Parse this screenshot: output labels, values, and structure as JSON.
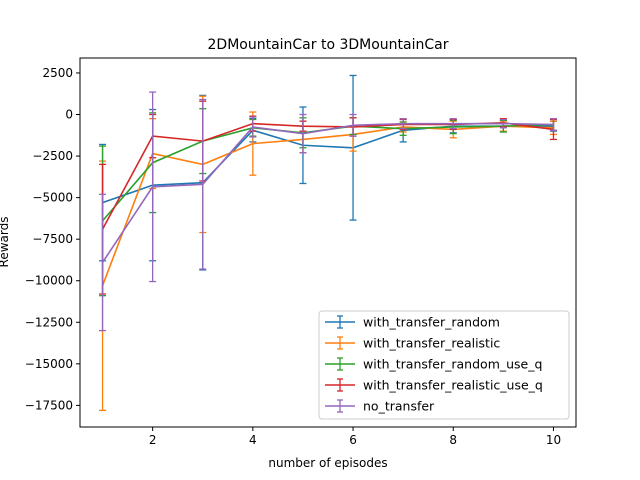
{
  "chart_data": {
    "type": "line",
    "title": "2DMountainCar to 3DMountainCar",
    "xlabel": "number of episodes",
    "ylabel": "Rewards",
    "xlim": [
      0.55,
      10.45
    ],
    "ylim": [
      -18800,
      3400
    ],
    "xticks": [
      2,
      4,
      6,
      8,
      10
    ],
    "xtick_labels": [
      "2",
      "4",
      "6",
      "8",
      "10"
    ],
    "yticks": [
      2500,
      0,
      -2500,
      -5000,
      -7500,
      -10000,
      -12500,
      -15000,
      -17500
    ],
    "ytick_labels": [
      "2500",
      "0",
      "−2500",
      "−5000",
      "−7500",
      "−10000",
      "−12500",
      "−15000",
      "−17500"
    ],
    "legend_position": "lower-right",
    "x": [
      1,
      2,
      3,
      4,
      5,
      6,
      7,
      8,
      9,
      10
    ],
    "series": [
      {
        "name": "with_transfer_random",
        "color": "#1f77b4",
        "values": [
          -5300,
          -4250,
          -4100,
          -950,
          -1850,
          -2000,
          -950,
          -700,
          -700,
          -700
        ],
        "err": [
          3500,
          4550,
          5250,
          700,
          2300,
          4350,
          700,
          400,
          350,
          300
        ]
      },
      {
        "name": "with_transfer_realistic",
        "color": "#ff7f0e",
        "values": [
          -10300,
          -2350,
          -3000,
          -1750,
          -1500,
          -1200,
          -750,
          -900,
          -700,
          -800
        ],
        "err": [
          7500,
          2100,
          4100,
          1900,
          800,
          1000,
          300,
          500,
          300,
          400
        ]
      },
      {
        "name": "with_transfer_random_use_q",
        "color": "#2ca02c",
        "values": [
          -6400,
          -2900,
          -1600,
          -800,
          -1100,
          -700,
          -850,
          -750,
          -700,
          -600
        ],
        "err": [
          4500,
          3000,
          1950,
          500,
          900,
          500,
          400,
          400,
          350,
          350
        ]
      },
      {
        "name": "with_transfer_realistic_use_q",
        "color": "#d62728",
        "values": [
          -6900,
          -1300,
          -1600,
          -550,
          -700,
          -750,
          -600,
          -600,
          -500,
          -900
        ],
        "err": [
          3900,
          1300,
          2400,
          450,
          300,
          550,
          300,
          300,
          250,
          600
        ]
      },
      {
        "name": "no_transfer",
        "color": "#9467bd",
        "values": [
          -8900,
          -4350,
          -4200,
          -750,
          -1150,
          -650,
          -550,
          -550,
          -550,
          -600
        ],
        "err": [
          4100,
          5700,
          5100,
          600,
          1150,
          650,
          300,
          300,
          250,
          350
        ]
      }
    ]
  }
}
